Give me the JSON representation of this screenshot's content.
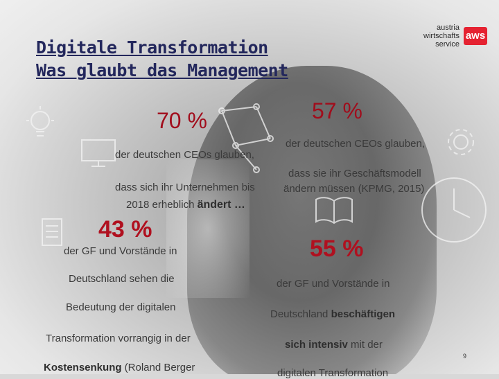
{
  "title": {
    "line1": "Digitale Transformation",
    "line2": "Was glaubt das Management"
  },
  "logo": {
    "line1": "austria",
    "line2": "wirtschafts",
    "line3": "service",
    "badge": "aws"
  },
  "stat1": {
    "value": "70 %",
    "line1": "der deutschen CEOs glauben,",
    "line2": "dass sich ihr Unternehmen bis",
    "line3_a": "2018 erheblich ",
    "line3_b": "ändert …"
  },
  "stat2": {
    "value": "57 %",
    "line1": "der deutschen CEOs glauben,",
    "line2": "dass sie ihr Geschäftsmodell",
    "line3": "ändern müssen (KPMG, 2015)"
  },
  "stat3": {
    "value": "43 %",
    "line1": "der GF und Vorstände in",
    "line2": "Deutschland sehen die",
    "line3": "Bedeutung der digitalen",
    "line4": "Transformation vorrangig in der",
    "line5_a": "Kostensenkung",
    "line5_b": " (Roland Berger"
  },
  "stat4": {
    "value": "55 %",
    "line1": "der GF und Vorstände in",
    "line2_a": "Deutschland ",
    "line2_b": "beschäftigen",
    "line3_a": "sich intensiv",
    "line3_b": " mit der",
    "line4": "digitalen Transformation"
  },
  "page_number": "9"
}
